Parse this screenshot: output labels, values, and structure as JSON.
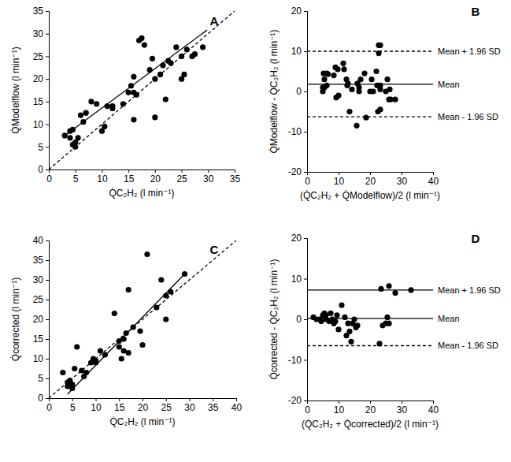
{
  "chart_data": [
    {
      "type": "scatter",
      "title": "A",
      "x_label": "Q̇C₂H₂ (l min⁻¹)",
      "y_label": "Q̇Modelflow (l min⁻¹)",
      "xlim": [
        0,
        35
      ],
      "xticks": [
        0,
        5,
        10,
        15,
        20,
        25,
        30,
        35
      ],
      "ylim": [
        0,
        35
      ],
      "yticks": [
        0,
        5,
        10,
        15,
        20,
        25,
        30,
        35
      ],
      "grid": false,
      "series": [
        {
          "type": "scatter",
          "marker": "circle",
          "color": "#000000",
          "x": [
            3,
            4,
            4,
            4.5,
            5,
            5,
            4.5,
            5.5,
            6,
            6.5,
            7,
            8,
            9,
            10,
            10.5,
            11,
            12,
            12,
            14,
            15,
            15.5,
            16,
            16,
            16,
            16.5,
            17,
            17.5,
            18,
            19,
            20,
            20,
            21,
            21.5,
            22,
            22.5,
            23,
            24,
            25,
            25,
            25.5,
            26,
            27,
            27.5,
            29,
            19.5
          ],
          "values": [
            7.5,
            7,
            8.5,
            5.5,
            6,
            5,
            8.8,
            7,
            12,
            10.5,
            12.5,
            15,
            14.5,
            8.5,
            9.5,
            14,
            13.5,
            14,
            14.5,
            17,
            18.5,
            11,
            20.5,
            17,
            16.5,
            28.5,
            29,
            27.5,
            22,
            11.5,
            20,
            21,
            23,
            15.5,
            24,
            23.5,
            27,
            20,
            25,
            21,
            26.5,
            25,
            25.5,
            27,
            24.5
          ]
        },
        {
          "type": "line",
          "line_style": "dashed",
          "color": "#000000",
          "x": [
            0,
            35
          ],
          "values": [
            0,
            35
          ]
        },
        {
          "type": "line",
          "line_style": "solid",
          "color": "#000000",
          "x": [
            3,
            29.8
          ],
          "values": [
            7.5,
            30.8
          ]
        }
      ]
    },
    {
      "type": "scatter",
      "title": "B",
      "x_label": "(Q̇C₂H₂ + Q̇Modelflow)/2 (l min⁻¹)",
      "y_label": "Q̇Modelflow - Q̇C₂H₂ (l min⁻¹)",
      "xlim": [
        0,
        40
      ],
      "xticks": [
        0,
        10,
        20,
        30,
        40
      ],
      "ylim": [
        -20,
        20
      ],
      "yticks": [
        -20,
        -10,
        0,
        10,
        20
      ],
      "grid": false,
      "series": [
        {
          "type": "scatter",
          "marker": "circle",
          "color": "#000000",
          "x": [
            5.25,
            5.5,
            6.25,
            5,
            5.5,
            5,
            6.65,
            6.25,
            9,
            8.5,
            9.75,
            11.5,
            11.75,
            9.25,
            10,
            12.5,
            12.75,
            13,
            14.25,
            16,
            17,
            13.5,
            18.25,
            16.5,
            16.5,
            22.75,
            23.25,
            22.75,
            20.5,
            15.75,
            20,
            21,
            22.25,
            18.75,
            23.25,
            23.25,
            25.5,
            22.5,
            25,
            23.25,
            26.25,
            26,
            26.5,
            28,
            22
          ],
          "values": [
            4.5,
            3,
            4.5,
            1,
            1,
            0,
            4.3,
            1.5,
            6,
            4,
            5.5,
            7,
            5.5,
            -1.5,
            -1,
            3,
            1.5,
            2,
            0.5,
            2,
            3,
            -5,
            4.5,
            1,
            0,
            11.5,
            11.5,
            9.5,
            3,
            -8.5,
            0,
            0,
            1.5,
            -6.5,
            1.5,
            0.5,
            3,
            -5,
            0,
            -4.5,
            0.5,
            -2,
            -2,
            -2,
            5
          ]
        },
        {
          "type": "line",
          "line_style": "dashed",
          "color": "#000000",
          "label": "Mean + 1.96 SD",
          "x": [
            0,
            40
          ],
          "values": [
            10,
            10
          ]
        },
        {
          "type": "line",
          "line_style": "solid",
          "color": "#000000",
          "label": "Mean",
          "x": [
            0,
            40
          ],
          "values": [
            1.8,
            1.8
          ]
        },
        {
          "type": "line",
          "line_style": "dashed",
          "color": "#000000",
          "label": "Mean - 1.96 SD",
          "x": [
            0,
            40
          ],
          "values": [
            -6.3,
            -6.3
          ]
        }
      ]
    },
    {
      "type": "scatter",
      "title": "C",
      "x_label": "Q̇C₂H₂ (l min⁻¹)",
      "y_label": "Q̇corrected (l min⁻¹)",
      "xlim": [
        0,
        40
      ],
      "xticks": [
        0,
        5,
        10,
        15,
        20,
        25,
        30,
        35,
        40
      ],
      "ylim": [
        0,
        40
      ],
      "yticks": [
        0,
        5,
        10,
        15,
        20,
        25,
        30,
        35,
        40
      ],
      "grid": false,
      "series": [
        {
          "type": "scatter",
          "marker": "circle",
          "color": "#000000",
          "x": [
            3,
            4,
            4,
            4.5,
            5,
            5,
            5.5,
            6,
            7,
            7.5,
            8,
            9,
            9.5,
            10,
            10,
            11,
            12,
            14,
            15,
            15,
            15.5,
            16,
            16,
            16.5,
            17,
            17,
            18,
            20,
            21,
            23,
            24,
            25,
            25,
            26,
            29,
            19.5
          ],
          "values": [
            6.5,
            4,
            3,
            4.5,
            2.5,
            3.5,
            7.5,
            13,
            7,
            5.5,
            6.5,
            9,
            10,
            9.5,
            9,
            12,
            11,
            21.5,
            13,
            14.5,
            10,
            12,
            15,
            16.5,
            27.5,
            11.5,
            18,
            13.5,
            36.5,
            23,
            30,
            20,
            26,
            27,
            31.5,
            17
          ]
        },
        {
          "type": "line",
          "line_style": "dashed",
          "color": "#000000",
          "x": [
            0,
            40
          ],
          "values": [
            0,
            40
          ]
        },
        {
          "type": "line",
          "line_style": "solid",
          "color": "#000000",
          "x": [
            4,
            29
          ],
          "values": [
            1,
            31.5
          ]
        }
      ]
    },
    {
      "type": "scatter",
      "title": "D",
      "x_label": "(Q̇C₂H₂ + Q̇corrected)/2 (l min⁻¹)",
      "y_label": "Q̇corrected - Q̇C₂H₂ (l min⁻¹)",
      "xlim": [
        0,
        40
      ],
      "xticks": [
        0,
        10,
        20,
        30,
        40
      ],
      "ylim": [
        -20,
        20
      ],
      "yticks": [
        -20,
        -10,
        0,
        10,
        20
      ],
      "grid": false,
      "series": [
        {
          "type": "scatter",
          "marker": "circle",
          "color": "#000000",
          "x": [
            2,
            3,
            4,
            4.5,
            5,
            5.5,
            6,
            6,
            7,
            7.5,
            8,
            8.5,
            9,
            9.5,
            10,
            11,
            12,
            12.5,
            13,
            13.5,
            14,
            14.5,
            15,
            15.5,
            16,
            23,
            23.5,
            24,
            25,
            25.5,
            26,
            28,
            33,
            26
          ],
          "values": [
            0.5,
            0,
            0,
            -0.5,
            1,
            1.5,
            1,
            0,
            -0.5,
            1.5,
            0,
            -1,
            -0.5,
            1,
            -2.5,
            3.5,
            0.5,
            -4,
            -1,
            -3,
            -5.5,
            -1,
            0,
            -2,
            -1.5,
            -6,
            7.5,
            -1.5,
            -1,
            0.5,
            8.2,
            6.5,
            7.2,
            -1
          ]
        },
        {
          "type": "line",
          "line_style": "solid",
          "color": "#000000",
          "label": "Mean + 1.96 SD",
          "x": [
            0,
            40
          ],
          "values": [
            7.2,
            7.2
          ]
        },
        {
          "type": "line",
          "line_style": "solid",
          "color": "#000000",
          "label": "Mean",
          "x": [
            0,
            40
          ],
          "values": [
            0.2,
            0.2
          ]
        },
        {
          "type": "line",
          "line_style": "dashed",
          "color": "#000000",
          "label": "Mean - 1.96 SD",
          "x": [
            0,
            40
          ],
          "values": [
            -6.5,
            -6.5
          ]
        }
      ]
    }
  ]
}
